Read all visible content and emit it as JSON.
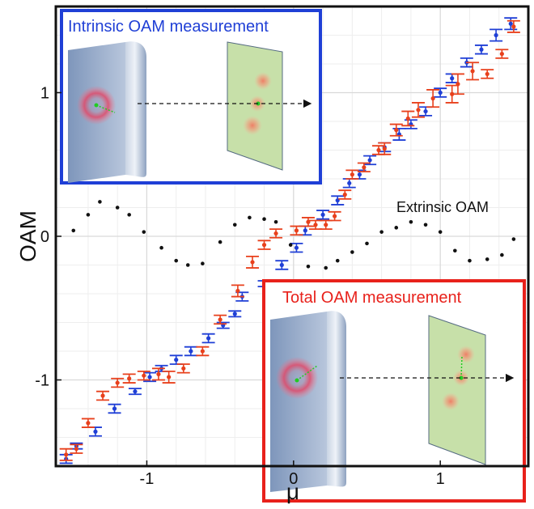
{
  "chart_data": {
    "type": "scatter",
    "xlabel": "μ",
    "ylabel": "OAM",
    "xlim": [
      -1.62,
      1.6
    ],
    "ylim": [
      -1.6,
      1.6
    ],
    "xticks": [
      -1,
      0,
      1
    ],
    "xtick_labels": [
      "-1",
      "0",
      "1"
    ],
    "yticks": [
      -1,
      0,
      1
    ],
    "ytick_labels": [
      "-1",
      "0",
      "1"
    ],
    "grid": true,
    "colors": {
      "intrinsic": "#1f3fd6",
      "total": "#e8401c",
      "extrinsic": "#111111",
      "grid": "#d9d9d9"
    },
    "series": [
      {
        "key": "blue",
        "x": [
          -1.55,
          -1.48,
          -1.35,
          -1.22,
          -1.08,
          -0.98,
          -0.9,
          -0.8,
          -0.7,
          -0.58,
          -0.48,
          -0.4,
          -0.35,
          -0.2,
          -0.08,
          0.02,
          0.08,
          0.2,
          0.3,
          0.38,
          0.45,
          0.52,
          0.62,
          0.72,
          0.8,
          0.9,
          1.0,
          1.08,
          1.18,
          1.28,
          1.38,
          1.48
        ],
        "y": [
          -1.55,
          -1.46,
          -1.36,
          -1.2,
          -1.08,
          -0.98,
          -0.92,
          -0.86,
          -0.8,
          -0.71,
          -0.62,
          -0.54,
          -0.42,
          -0.33,
          -0.2,
          -0.08,
          0.04,
          0.15,
          0.25,
          0.37,
          0.43,
          0.53,
          0.62,
          0.71,
          0.78,
          0.87,
          1.0,
          1.1,
          1.21,
          1.3,
          1.4,
          1.48
        ],
        "err": [
          0.03,
          0.02,
          0.03,
          0.03,
          0.02,
          0.03,
          0.02,
          0.03,
          0.03,
          0.03,
          0.02,
          0.02,
          0.03,
          0.02,
          0.03,
          0.03,
          0.03,
          0.03,
          0.03,
          0.03,
          0.03,
          0.03,
          0.03,
          0.04,
          0.03,
          0.03,
          0.03,
          0.03,
          0.03,
          0.03,
          0.04,
          0.04
        ]
      },
      {
        "key": "red",
        "x": [
          -1.55,
          -1.48,
          -1.4,
          -1.3,
          -1.2,
          -1.12,
          -1.02,
          -0.92,
          -0.85,
          -0.75,
          -0.62,
          -0.5,
          -0.38,
          -0.28,
          -0.2,
          -0.12,
          0.02,
          0.1,
          0.15,
          0.22,
          0.28,
          0.35,
          0.4,
          0.48,
          0.58,
          0.62,
          0.7,
          0.78,
          0.85,
          0.95,
          1.08,
          1.12,
          1.22,
          1.32,
          1.42,
          1.5
        ],
        "y": [
          -1.52,
          -1.48,
          -1.3,
          -1.11,
          -1.02,
          -0.99,
          -0.97,
          -0.96,
          -0.98,
          -0.92,
          -0.8,
          -0.58,
          -0.38,
          -0.18,
          -0.06,
          0.02,
          0.04,
          0.1,
          0.08,
          0.08,
          0.14,
          0.29,
          0.43,
          0.48,
          0.6,
          0.61,
          0.74,
          0.82,
          0.88,
          0.96,
          0.99,
          1.06,
          1.15,
          1.13,
          1.27,
          1.46
        ],
        "err": [
          0.04,
          0.03,
          0.03,
          0.03,
          0.03,
          0.03,
          0.03,
          0.04,
          0.04,
          0.03,
          0.03,
          0.03,
          0.04,
          0.04,
          0.03,
          0.03,
          0.03,
          0.03,
          0.03,
          0.03,
          0.03,
          0.03,
          0.03,
          0.03,
          0.03,
          0.04,
          0.04,
          0.05,
          0.05,
          0.06,
          0.06,
          0.07,
          0.06,
          0.03,
          0.03,
          0.04
        ]
      },
      {
        "key": "black",
        "x": [
          -1.5,
          -1.4,
          -1.32,
          -1.2,
          -1.12,
          -1.02,
          -0.9,
          -0.8,
          -0.72,
          -0.62,
          -0.5,
          -0.4,
          -0.3,
          -0.2,
          -0.12,
          -0.02,
          0.1,
          0.22,
          0.3,
          0.4,
          0.5,
          0.6,
          0.7,
          0.8,
          0.9,
          1.0,
          1.1,
          1.2,
          1.32,
          1.42,
          1.5
        ],
        "y": [
          0.04,
          0.15,
          0.24,
          0.2,
          0.15,
          0.03,
          -0.08,
          -0.17,
          -0.2,
          -0.19,
          -0.04,
          0.08,
          0.13,
          0.12,
          0.1,
          -0.06,
          -0.21,
          -0.22,
          -0.17,
          -0.11,
          -0.05,
          0.03,
          0.06,
          0.1,
          0.08,
          0.03,
          -0.1,
          -0.17,
          -0.16,
          -0.13,
          -0.02
        ],
        "err": []
      }
    ],
    "annotations": {
      "extrinsic": "Extrinsic OAM"
    },
    "insets": {
      "intrinsic": "Intrinsic OAM measurement",
      "total": "Total OAM measurement"
    }
  }
}
